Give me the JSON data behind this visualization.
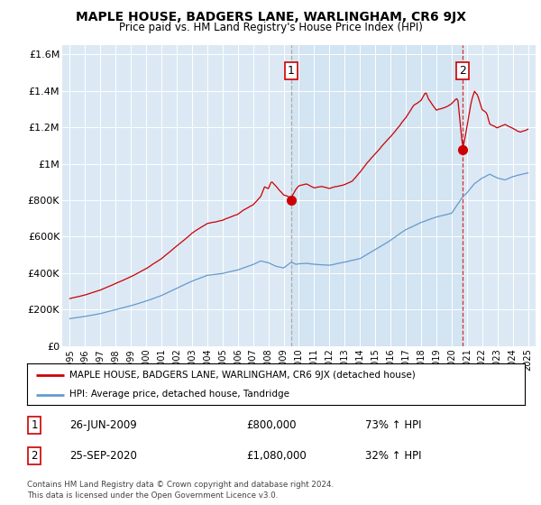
{
  "title": "MAPLE HOUSE, BADGERS LANE, WARLINGHAM, CR6 9JX",
  "subtitle": "Price paid vs. HM Land Registry's House Price Index (HPI)",
  "legend_line1": "MAPLE HOUSE, BADGERS LANE, WARLINGHAM, CR6 9JX (detached house)",
  "legend_line2": "HPI: Average price, detached house, Tandridge",
  "sale1_date": 2009.49,
  "sale1_price": 800000,
  "sale1_label": "26-JUN-2009",
  "sale1_amount": "£800,000",
  "sale1_pct": "73% ↑ HPI",
  "sale2_date": 2020.73,
  "sale2_price": 1080000,
  "sale2_label": "25-SEP-2020",
  "sale2_amount": "£1,080,000",
  "sale2_pct": "32% ↑ HPI",
  "red_line_color": "#cc0000",
  "blue_line_color": "#6699cc",
  "background_color": "#dce9f5",
  "highlight_color": "#ccdff0",
  "ylim": [
    0,
    1650000
  ],
  "xlim_start": 1994.5,
  "xlim_end": 2025.5,
  "yticks": [
    0,
    200000,
    400000,
    600000,
    800000,
    1000000,
    1200000,
    1400000,
    1600000
  ],
  "ytick_labels": [
    "£0",
    "£200K",
    "£400K",
    "£600K",
    "£800K",
    "£1M",
    "£1.2M",
    "£1.4M",
    "£1.6M"
  ],
  "xticks": [
    1995,
    1996,
    1997,
    1998,
    1999,
    2000,
    2001,
    2002,
    2003,
    2004,
    2005,
    2006,
    2007,
    2008,
    2009,
    2010,
    2011,
    2012,
    2013,
    2014,
    2015,
    2016,
    2017,
    2018,
    2019,
    2020,
    2021,
    2022,
    2023,
    2024,
    2025
  ],
  "note": "Contains HM Land Registry data © Crown copyright and database right 2024.\nThis data is licensed under the Open Government Licence v3.0."
}
